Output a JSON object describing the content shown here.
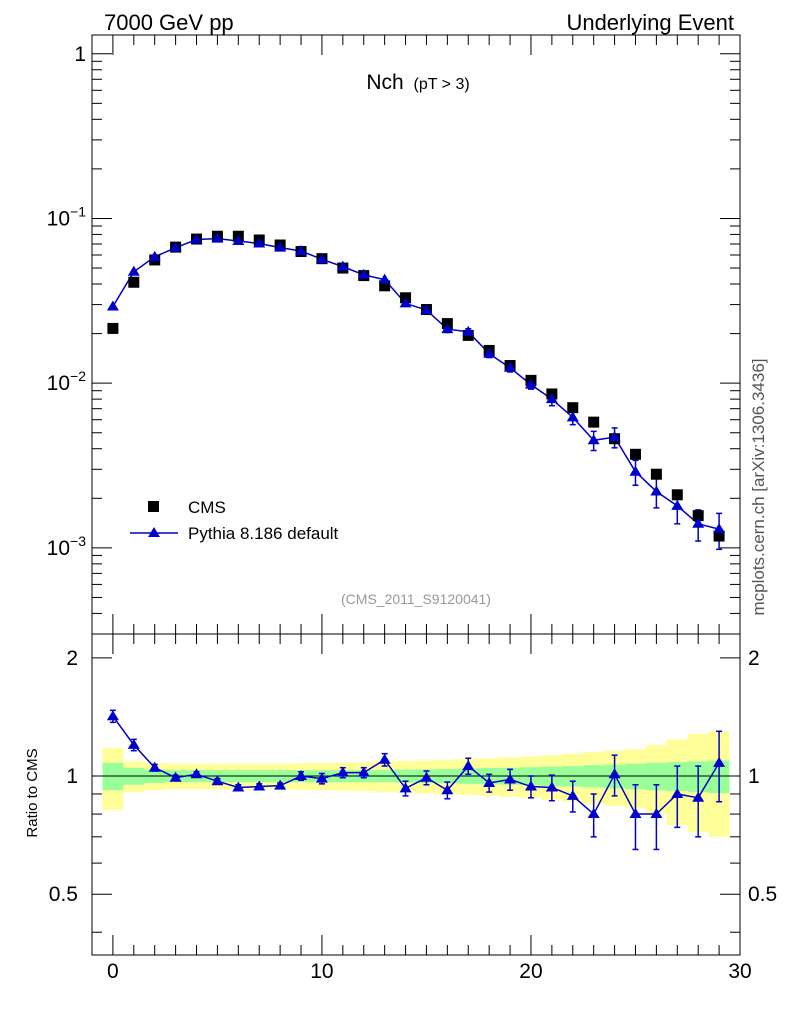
{
  "header": {
    "left_label": "7000 GeV pp",
    "right_label": "Underlying Event"
  },
  "side_label": "mcplots.cern.ch [arXiv:1306.3436]",
  "chart_data": [
    {
      "type": "scatter",
      "panel": "main",
      "title": "Nch",
      "subtitle": "(pT >  3)",
      "annotation": "(CMS_2011_S9120041)",
      "yscale": "log",
      "xlim": [
        -1,
        30
      ],
      "ylim": [
        0.0003,
        1.3
      ],
      "ytick_labels": [
        {
          "value": 1,
          "base": "1",
          "exp": ""
        },
        {
          "value": 0.1,
          "base": "10",
          "exp": "−1"
        },
        {
          "value": 0.01,
          "base": "10",
          "exp": "−2"
        },
        {
          "value": 0.001,
          "base": "10",
          "exp": "−3"
        }
      ],
      "legend_position": "bottom-left",
      "series": [
        {
          "name": "CMS",
          "marker": "square",
          "color": "#000000",
          "x": [
            0,
            1,
            2,
            3,
            4,
            5,
            6,
            7,
            8,
            9,
            10,
            11,
            12,
            13,
            14,
            15,
            16,
            17,
            18,
            19,
            20,
            21,
            22,
            23,
            24,
            25,
            26,
            27,
            28,
            29
          ],
          "y": [
            0.0215,
            0.041,
            0.056,
            0.067,
            0.075,
            0.078,
            0.078,
            0.074,
            0.069,
            0.063,
            0.057,
            0.05,
            0.045,
            0.039,
            0.033,
            0.028,
            0.023,
            0.0195,
            0.0158,
            0.0128,
            0.0104,
            0.0086,
            0.0071,
            0.0058,
            0.0046,
            0.0037,
            0.0028,
            0.0021,
            0.00157,
            0.00118
          ]
        },
        {
          "name": "Pythia 8.186 default",
          "marker": "triangle",
          "color": "#0000cc",
          "x": [
            0,
            1,
            2,
            3,
            4,
            5,
            6,
            7,
            8,
            9,
            10,
            11,
            12,
            13,
            14,
            15,
            16,
            17,
            18,
            19,
            20,
            21,
            22,
            23,
            24,
            25,
            26,
            27,
            28,
            29
          ],
          "y": [
            0.0292,
            0.0475,
            0.0585,
            0.0665,
            0.0745,
            0.0755,
            0.073,
            0.0705,
            0.0665,
            0.0635,
            0.0565,
            0.051,
            0.0455,
            0.0425,
            0.0305,
            0.0278,
            0.0213,
            0.0205,
            0.0151,
            0.0124,
            0.0098,
            0.008,
            0.0062,
            0.0045,
            0.0047,
            0.0029,
            0.0022,
            0.0018,
            0.0014,
            0.0013
          ],
          "err": [
            0,
            0,
            0,
            0,
            0,
            0,
            0,
            0,
            0,
            0,
            0,
            0,
            0,
            0,
            0.0012,
            0.0008,
            0.001,
            0.0009,
            0.0008,
            0.0007,
            0.0006,
            0.0007,
            0.0006,
            0.0006,
            0.00065,
            0.0005,
            0.00045,
            0.0004,
            0.0003,
            0.00032
          ]
        }
      ]
    },
    {
      "type": "scatter",
      "panel": "ratio",
      "ylabel": "Ratio to CMS",
      "xlim": [
        -1,
        30
      ],
      "ylim": [
        0.35,
        2.3
      ],
      "xticks": [
        0,
        10,
        20,
        30
      ],
      "yticks": [
        0.5,
        1,
        2
      ],
      "ytick_labels": [
        "0.5",
        "1",
        "2"
      ],
      "reference_line": 1,
      "band_colors": {
        "outer": "#ffff99",
        "inner": "#99ff99"
      },
      "bands": {
        "x": [
          0,
          1,
          2,
          3,
          4,
          5,
          6,
          7,
          8,
          9,
          10,
          11,
          12,
          13,
          14,
          15,
          16,
          17,
          18,
          19,
          20,
          21,
          22,
          23,
          24,
          25,
          26,
          27,
          28,
          29
        ],
        "inner_lo": [
          0.92,
          0.95,
          0.96,
          0.965,
          0.965,
          0.965,
          0.965,
          0.965,
          0.965,
          0.965,
          0.965,
          0.965,
          0.965,
          0.965,
          0.962,
          0.96,
          0.958,
          0.955,
          0.952,
          0.95,
          0.947,
          0.944,
          0.94,
          0.935,
          0.93,
          0.925,
          0.92,
          0.915,
          0.91,
          0.905
        ],
        "inner_hi": [
          1.08,
          1.05,
          1.04,
          1.035,
          1.035,
          1.035,
          1.035,
          1.035,
          1.035,
          1.035,
          1.035,
          1.035,
          1.035,
          1.035,
          1.038,
          1.04,
          1.042,
          1.045,
          1.048,
          1.05,
          1.053,
          1.056,
          1.06,
          1.065,
          1.07,
          1.075,
          1.08,
          1.085,
          1.09,
          1.095
        ],
        "outer_lo": [
          0.82,
          0.91,
          0.92,
          0.925,
          0.925,
          0.925,
          0.925,
          0.925,
          0.925,
          0.922,
          0.92,
          0.918,
          0.915,
          0.912,
          0.908,
          0.904,
          0.9,
          0.895,
          0.89,
          0.885,
          0.88,
          0.87,
          0.86,
          0.85,
          0.84,
          0.83,
          0.8,
          0.75,
          0.72,
          0.7
        ],
        "outer_hi": [
          1.18,
          1.09,
          1.08,
          1.075,
          1.075,
          1.075,
          1.075,
          1.075,
          1.075,
          1.078,
          1.08,
          1.082,
          1.085,
          1.088,
          1.092,
          1.096,
          1.1,
          1.105,
          1.11,
          1.115,
          1.12,
          1.13,
          1.14,
          1.15,
          1.16,
          1.17,
          1.2,
          1.24,
          1.28,
          1.3
        ]
      },
      "series": [
        {
          "name": "Pythia 8.186 default",
          "marker": "triangle",
          "color": "#0000cc",
          "x": [
            0,
            1,
            2,
            3,
            4,
            5,
            6,
            7,
            8,
            9,
            10,
            11,
            12,
            13,
            14,
            15,
            16,
            17,
            18,
            19,
            20,
            21,
            22,
            23,
            24,
            25,
            26,
            27,
            28,
            29
          ],
          "y": [
            1.42,
            1.2,
            1.05,
            0.99,
            1.01,
            0.97,
            0.935,
            0.94,
            0.945,
            1.0,
            0.985,
            1.02,
            1.02,
            1.1,
            0.93,
            0.99,
            0.92,
            1.06,
            0.96,
            0.98,
            0.94,
            0.935,
            0.89,
            0.8,
            1.01,
            0.8,
            0.8,
            0.9,
            0.88,
            1.08
          ],
          "err": [
            0.05,
            0.04,
            0.02,
            0.015,
            0.015,
            0.015,
            0.015,
            0.015,
            0.015,
            0.025,
            0.03,
            0.03,
            0.03,
            0.04,
            0.04,
            0.04,
            0.045,
            0.05,
            0.05,
            0.06,
            0.06,
            0.07,
            0.08,
            0.1,
            0.12,
            0.15,
            0.15,
            0.16,
            0.18,
            0.22
          ]
        }
      ]
    }
  ]
}
